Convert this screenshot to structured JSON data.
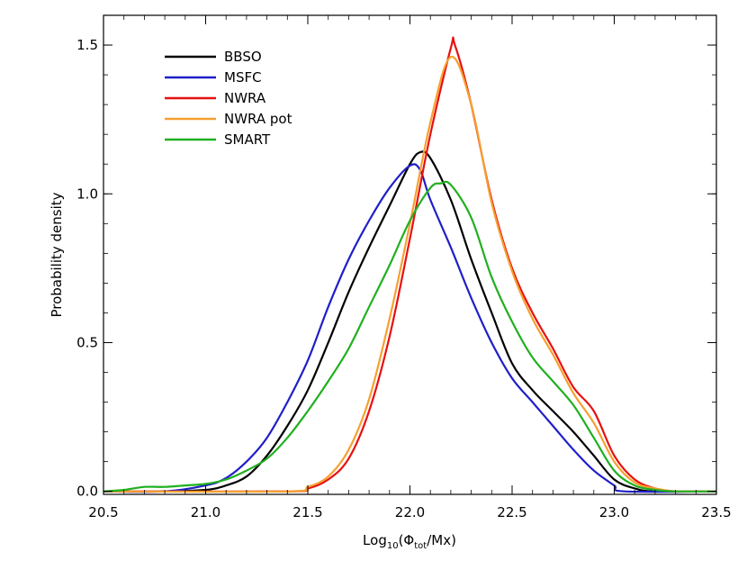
{
  "chart_data": {
    "type": "line",
    "xlabel_base": "Log",
    "xlabel_sub1": "10",
    "xlabel_mid": "(Φ",
    "xlabel_sub2": "tot",
    "xlabel_end": "/Mx)",
    "ylabel": "Probability density",
    "xlim": [
      20.5,
      23.5
    ],
    "ylim": [
      -0.01,
      1.6
    ],
    "x_ticks": [
      "20.5",
      "21.0",
      "21.5",
      "22.0",
      "22.5",
      "23.0",
      "23.5"
    ],
    "y_ticks": [
      "0.0",
      "0.5",
      "1.0",
      "1.5"
    ],
    "legend_position": "top-left",
    "grid": false,
    "series": [
      {
        "name": "BBSO",
        "color": "#000000",
        "points": [
          [
            20.5,
            0.0
          ],
          [
            20.8,
            0.0
          ],
          [
            21.0,
            0.005
          ],
          [
            21.1,
            0.02
          ],
          [
            21.2,
            0.05
          ],
          [
            21.3,
            0.12
          ],
          [
            21.4,
            0.22
          ],
          [
            21.5,
            0.34
          ],
          [
            21.6,
            0.5
          ],
          [
            21.7,
            0.67
          ],
          [
            21.8,
            0.82
          ],
          [
            21.9,
            0.96
          ],
          [
            22.0,
            1.1
          ],
          [
            22.05,
            1.14
          ],
          [
            22.1,
            1.12
          ],
          [
            22.2,
            0.98
          ],
          [
            22.3,
            0.78
          ],
          [
            22.4,
            0.6
          ],
          [
            22.5,
            0.43
          ],
          [
            22.6,
            0.34
          ],
          [
            22.7,
            0.27
          ],
          [
            22.8,
            0.2
          ],
          [
            22.9,
            0.12
          ],
          [
            23.0,
            0.04
          ],
          [
            23.1,
            0.01
          ],
          [
            23.2,
            0.0
          ],
          [
            23.5,
            0.0
          ]
        ]
      },
      {
        "name": "MSFC",
        "color": "#1f1fc8",
        "points": [
          [
            20.5,
            0.0
          ],
          [
            20.8,
            0.0
          ],
          [
            21.0,
            0.02
          ],
          [
            21.1,
            0.045
          ],
          [
            21.2,
            0.1
          ],
          [
            21.3,
            0.18
          ],
          [
            21.4,
            0.3
          ],
          [
            21.5,
            0.44
          ],
          [
            21.6,
            0.62
          ],
          [
            21.7,
            0.78
          ],
          [
            21.8,
            0.91
          ],
          [
            21.9,
            1.02
          ],
          [
            22.0,
            1.095
          ],
          [
            22.05,
            1.08
          ],
          [
            22.1,
            0.98
          ],
          [
            22.2,
            0.82
          ],
          [
            22.3,
            0.65
          ],
          [
            22.4,
            0.5
          ],
          [
            22.5,
            0.38
          ],
          [
            22.6,
            0.3
          ],
          [
            22.7,
            0.22
          ],
          [
            22.8,
            0.14
          ],
          [
            22.9,
            0.07
          ],
          [
            23.0,
            0.02
          ],
          [
            23.05,
            0.0
          ],
          [
            23.5,
            0.0
          ]
        ]
      },
      {
        "name": "NWRA",
        "color": "#e81010",
        "points": [
          [
            20.5,
            0.0
          ],
          [
            21.4,
            0.0
          ],
          [
            21.5,
            0.01
          ],
          [
            21.6,
            0.04
          ],
          [
            21.7,
            0.11
          ],
          [
            21.8,
            0.27
          ],
          [
            21.9,
            0.52
          ],
          [
            22.0,
            0.85
          ],
          [
            22.1,
            1.2
          ],
          [
            22.2,
            1.49
          ],
          [
            22.22,
            1.5
          ],
          [
            22.3,
            1.3
          ],
          [
            22.4,
            0.98
          ],
          [
            22.5,
            0.75
          ],
          [
            22.6,
            0.6
          ],
          [
            22.7,
            0.48
          ],
          [
            22.8,
            0.35
          ],
          [
            22.9,
            0.27
          ],
          [
            23.0,
            0.12
          ],
          [
            23.1,
            0.04
          ],
          [
            23.2,
            0.01
          ],
          [
            23.3,
            0.0
          ],
          [
            23.5,
            0.0
          ]
        ]
      },
      {
        "name": "NWRA pot",
        "color": "#f5a030",
        "points": [
          [
            20.5,
            0.0
          ],
          [
            21.4,
            0.0
          ],
          [
            21.5,
            0.015
          ],
          [
            21.6,
            0.05
          ],
          [
            21.7,
            0.14
          ],
          [
            21.8,
            0.31
          ],
          [
            21.9,
            0.58
          ],
          [
            22.0,
            0.9
          ],
          [
            22.1,
            1.24
          ],
          [
            22.2,
            1.46
          ],
          [
            22.3,
            1.3
          ],
          [
            22.4,
            0.97
          ],
          [
            22.5,
            0.74
          ],
          [
            22.6,
            0.58
          ],
          [
            22.7,
            0.46
          ],
          [
            22.8,
            0.33
          ],
          [
            22.9,
            0.23
          ],
          [
            23.0,
            0.1
          ],
          [
            23.1,
            0.03
          ],
          [
            23.2,
            0.01
          ],
          [
            23.3,
            0.0
          ],
          [
            23.5,
            0.0
          ]
        ]
      },
      {
        "name": "SMART",
        "color": "#20b020",
        "points": [
          [
            20.5,
            0.0
          ],
          [
            20.6,
            0.005
          ],
          [
            20.7,
            0.015
          ],
          [
            20.8,
            0.015
          ],
          [
            20.9,
            0.02
          ],
          [
            21.0,
            0.025
          ],
          [
            21.1,
            0.04
          ],
          [
            21.2,
            0.07
          ],
          [
            21.3,
            0.11
          ],
          [
            21.4,
            0.18
          ],
          [
            21.5,
            0.27
          ],
          [
            21.6,
            0.37
          ],
          [
            21.7,
            0.48
          ],
          [
            21.8,
            0.62
          ],
          [
            21.9,
            0.76
          ],
          [
            22.0,
            0.91
          ],
          [
            22.1,
            1.02
          ],
          [
            22.15,
            1.035
          ],
          [
            22.2,
            1.03
          ],
          [
            22.3,
            0.92
          ],
          [
            22.4,
            0.72
          ],
          [
            22.5,
            0.57
          ],
          [
            22.6,
            0.45
          ],
          [
            22.7,
            0.37
          ],
          [
            22.8,
            0.29
          ],
          [
            22.9,
            0.18
          ],
          [
            23.0,
            0.07
          ],
          [
            23.1,
            0.02
          ],
          [
            23.2,
            0.005
          ],
          [
            23.3,
            0.0
          ],
          [
            23.5,
            0.0
          ]
        ]
      }
    ]
  }
}
